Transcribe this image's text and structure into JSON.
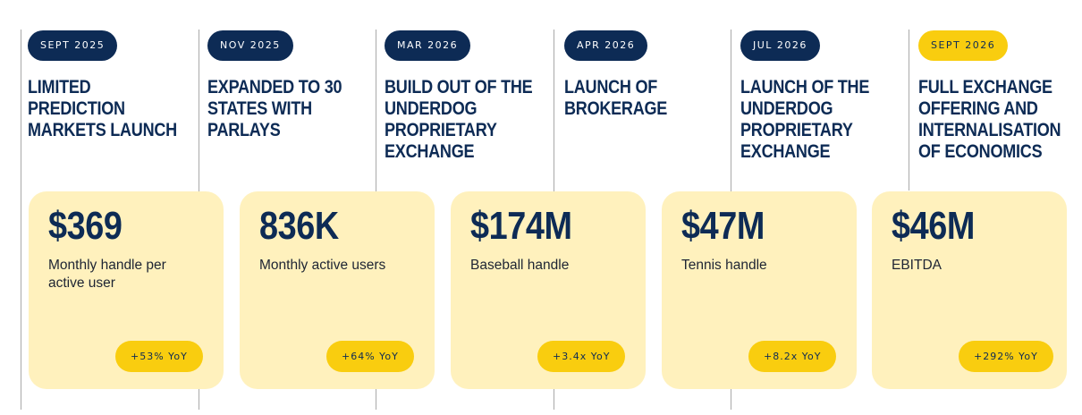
{
  "timeline": {
    "milestones": [
      {
        "date": "SEPT 2025",
        "title": "LIMITED PREDICTION MARKETS LAUNCH",
        "accent": false
      },
      {
        "date": "NOV 2025",
        "title": "EXPANDED TO 30 STATES WITH PARLAYS",
        "accent": false
      },
      {
        "date": "MAR 2026",
        "title": "BUILD OUT OF THE UNDERDOG PROPRIETARY EXCHANGE",
        "accent": false
      },
      {
        "date": "APR 2026",
        "title": "LAUNCH OF BROKERAGE",
        "accent": false
      },
      {
        "date": "JUL 2026",
        "title": "LAUNCH OF THE UNDERDOG PROPRIETARY EXCHANGE",
        "accent": false
      },
      {
        "date": "SEPT 2026",
        "title": "FULL EXCHANGE OFFERING AND INTERNALISATION OF ECONOMICS",
        "accent": true
      }
    ]
  },
  "metrics": {
    "cards": [
      {
        "value": "$369",
        "label": "Monthly handle per active user",
        "change": "+53% YoY"
      },
      {
        "value": "836K",
        "label": "Monthly active users",
        "change": "+64% YoY"
      },
      {
        "value": "$174M",
        "label": "Baseball handle",
        "change": "+3.4x YoY"
      },
      {
        "value": "$47M",
        "label": "Tennis handle",
        "change": "+8.2x YoY"
      },
      {
        "value": "$46M",
        "label": "EBITDA",
        "change": "+292% YoY"
      }
    ]
  },
  "colors": {
    "navy": "#0d2b55",
    "accent_yellow": "#f9cd0f",
    "card_background": "#fff1bd",
    "divider": "#a9a9a9"
  }
}
